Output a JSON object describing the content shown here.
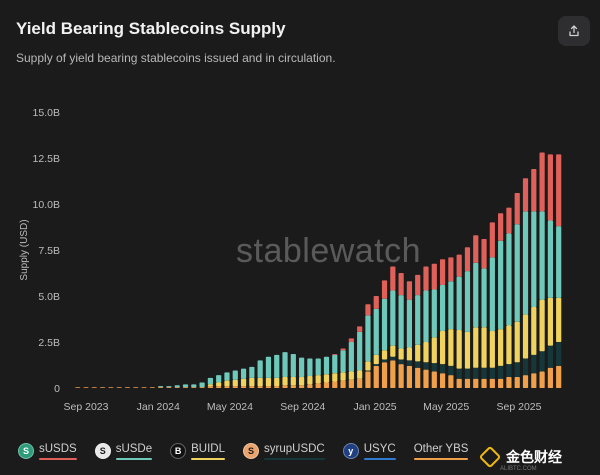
{
  "header": {
    "title": "Yield Bearing Stablecoins Supply",
    "subtitle": "Supply of yield bearing stablecoins issued and in circulation."
  },
  "watermark": "stablewatch",
  "brand": {
    "text": "金色财经",
    "sub": "ALIBTC.COM"
  },
  "legend": [
    {
      "label": "sUSDS",
      "icon": "susds-icon",
      "glyph": "S",
      "color": "#e0605a",
      "icon_bg": "#2c9c7a"
    },
    {
      "label": "sUSDe",
      "icon": "susde-icon",
      "glyph": "S",
      "color": "#6ec9bb",
      "icon_bg": "#e8e8e8"
    },
    {
      "label": "BUIDL",
      "icon": "buidl-icon",
      "glyph": "B",
      "color": "#f0d35e",
      "icon_bg": "#111111"
    },
    {
      "label": "syrupUSDC",
      "icon": "syrupusdc-icon",
      "glyph": "S",
      "color": "#16373a",
      "icon_bg": "#e9a36d"
    },
    {
      "label": "USYC",
      "icon": "usyc-icon",
      "glyph": "y",
      "color": "#2f79d0",
      "icon_bg": "#1f3f80"
    },
    {
      "label": "Other YBS",
      "icon": "",
      "glyph": "",
      "color": "#f0a04b",
      "icon_bg": ""
    }
  ],
  "chart_data": {
    "type": "bar",
    "stacked": true,
    "ylabel": "Supply (USD)",
    "xlabel": "",
    "ylim": [
      0,
      15000000000
    ],
    "y_ticks": [
      0,
      2500000000,
      5000000000,
      7500000000,
      10000000000,
      12500000000,
      15000000000
    ],
    "y_tick_labels": [
      "0",
      "2.5B",
      "5.0B",
      "7.5B",
      "10.0B",
      "12.5B",
      "15.0B"
    ],
    "x_tick_labels": [
      "Sep 2023",
      "Jan 2024",
      "May 2024",
      "Sep 2024",
      "Jan 2025",
      "May 2025",
      "Sep 2025"
    ],
    "x_tick_dates": [
      "2023-09-01",
      "2024-01-01",
      "2024-05-01",
      "2024-09-01",
      "2025-01-01",
      "2025-05-01",
      "2025-09-01"
    ],
    "grid": false,
    "dates": [
      "2023-08-04",
      "2023-08-18",
      "2023-09-01",
      "2023-09-15",
      "2023-09-29",
      "2023-10-13",
      "2023-10-27",
      "2023-11-10",
      "2023-11-24",
      "2023-12-08",
      "2023-12-22",
      "2024-01-05",
      "2024-01-19",
      "2024-02-02",
      "2024-02-16",
      "2024-03-01",
      "2024-03-15",
      "2024-03-29",
      "2024-04-12",
      "2024-04-26",
      "2024-05-10",
      "2024-05-24",
      "2024-06-07",
      "2024-06-21",
      "2024-07-05",
      "2024-07-19",
      "2024-08-02",
      "2024-08-16",
      "2024-08-30",
      "2024-09-13",
      "2024-09-27",
      "2024-10-11",
      "2024-10-25",
      "2024-11-08",
      "2024-11-22",
      "2024-12-06",
      "2024-12-20",
      "2025-01-03",
      "2025-01-17",
      "2025-01-31",
      "2025-02-14",
      "2025-02-28",
      "2025-03-14",
      "2025-03-28",
      "2025-04-11",
      "2025-04-25",
      "2025-05-09",
      "2025-05-23",
      "2025-06-06",
      "2025-06-20",
      "2025-07-04",
      "2025-07-18",
      "2025-08-01",
      "2025-08-15",
      "2025-08-29",
      "2025-09-12",
      "2025-09-26",
      "2025-10-10",
      "2025-10-24",
      "2025-11-07"
    ],
    "series": [
      {
        "name": "Other YBS",
        "color": "#f0a04b",
        "values": [
          0.04,
          0.04,
          0.04,
          0.04,
          0.04,
          0.04,
          0.04,
          0.04,
          0.04,
          0.04,
          0.04,
          0.05,
          0.05,
          0.05,
          0.05,
          0.05,
          0.05,
          0.1,
          0.1,
          0.1,
          0.1,
          0.1,
          0.1,
          0.1,
          0.1,
          0.1,
          0.15,
          0.15,
          0.15,
          0.2,
          0.25,
          0.3,
          0.35,
          0.4,
          0.45,
          0.5,
          0.9,
          1.2,
          1.4,
          1.5,
          1.3,
          1.2,
          1.1,
          1.0,
          0.9,
          0.8,
          0.7,
          0.5,
          0.5,
          0.5,
          0.5,
          0.5,
          0.5,
          0.6,
          0.6,
          0.7,
          0.8,
          0.9,
          1.1,
          1.2
        ]
      },
      {
        "name": "USYC",
        "color": "#2f79d0",
        "values": [
          0,
          0,
          0,
          0,
          0,
          0,
          0,
          0,
          0,
          0,
          0,
          0,
          0,
          0,
          0,
          0,
          0,
          0,
          0,
          0,
          0,
          0,
          0,
          0,
          0,
          0,
          0,
          0,
          0,
          0,
          0,
          0,
          0,
          0,
          0,
          0,
          0,
          0,
          0,
          0,
          0,
          0,
          0,
          0,
          0,
          0,
          0,
          0,
          0,
          0,
          0,
          0,
          0,
          0,
          0,
          0,
          0,
          0,
          0,
          0
        ]
      },
      {
        "name": "syrupUSDC",
        "color": "#16373a",
        "values": [
          0,
          0,
          0,
          0,
          0,
          0,
          0,
          0,
          0,
          0,
          0,
          0,
          0,
          0,
          0,
          0,
          0,
          0,
          0,
          0,
          0,
          0,
          0,
          0,
          0,
          0,
          0,
          0,
          0,
          0,
          0,
          0,
          0,
          0,
          0,
          0,
          0.05,
          0.1,
          0.15,
          0.2,
          0.25,
          0.3,
          0.35,
          0.4,
          0.45,
          0.5,
          0.5,
          0.55,
          0.55,
          0.6,
          0.6,
          0.6,
          0.7,
          0.7,
          0.8,
          0.9,
          1.0,
          1.1,
          1.2,
          1.3
        ]
      },
      {
        "name": "BUIDL",
        "color": "#f0d35e",
        "values": [
          0,
          0,
          0,
          0,
          0,
          0,
          0,
          0,
          0,
          0,
          0,
          0,
          0,
          0,
          0,
          0,
          0,
          0.1,
          0.2,
          0.3,
          0.35,
          0.4,
          0.45,
          0.45,
          0.45,
          0.45,
          0.45,
          0.45,
          0.45,
          0.45,
          0.45,
          0.45,
          0.45,
          0.45,
          0.45,
          0.45,
          0.5,
          0.5,
          0.5,
          0.6,
          0.6,
          0.7,
          0.9,
          1.1,
          1.4,
          1.8,
          2.0,
          2.1,
          2.0,
          2.2,
          2.2,
          2.0,
          2.0,
          2.1,
          2.2,
          2.4,
          2.6,
          2.8,
          2.6,
          2.4
        ]
      },
      {
        "name": "sUSDe",
        "color": "#6ec9bb",
        "values": [
          0,
          0,
          0,
          0,
          0,
          0,
          0,
          0,
          0,
          0,
          0,
          0.05,
          0.05,
          0.1,
          0.15,
          0.15,
          0.25,
          0.35,
          0.4,
          0.45,
          0.5,
          0.55,
          0.6,
          0.95,
          1.15,
          1.25,
          1.35,
          1.25,
          1.05,
          0.95,
          0.9,
          0.95,
          1.0,
          1.2,
          1.6,
          2.1,
          2.5,
          2.5,
          2.8,
          3.0,
          2.9,
          2.6,
          2.7,
          2.8,
          2.6,
          2.5,
          2.6,
          2.9,
          3.3,
          3.5,
          3.2,
          4.0,
          4.8,
          5.0,
          5.3,
          5.6,
          5.2,
          4.8,
          4.2,
          3.9
        ]
      },
      {
        "name": "sUSDS",
        "color": "#e0605a",
        "values": [
          0,
          0,
          0,
          0,
          0,
          0,
          0,
          0,
          0,
          0,
          0,
          0,
          0,
          0,
          0,
          0,
          0,
          0,
          0,
          0,
          0,
          0,
          0,
          0,
          0,
          0,
          0,
          0,
          0,
          0,
          0,
          0,
          0.05,
          0.1,
          0.2,
          0.3,
          0.6,
          0.7,
          1.0,
          1.3,
          1.2,
          1.0,
          1.1,
          1.3,
          1.4,
          1.4,
          1.3,
          1.2,
          1.3,
          1.5,
          1.6,
          1.9,
          1.5,
          1.4,
          1.7,
          1.8,
          2.3,
          3.2,
          3.6,
          3.9
        ]
      }
    ]
  }
}
